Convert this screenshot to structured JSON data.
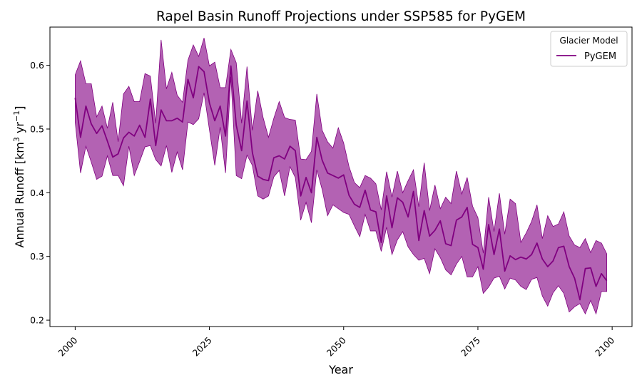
{
  "chart_data": {
    "type": "area",
    "title": "Rapel Basin Runoff Projections under SSP585 for PyGEM",
    "xlabel": "Year",
    "ylabel_main": "Annual Runoff [km",
    "ylabel_sup1": "3",
    "ylabel_mid": " yr",
    "ylabel_sup2": "−1",
    "ylabel_end": "]",
    "xlim": [
      1995.3,
      2103.7
    ],
    "ylim": [
      0.19,
      0.66
    ],
    "xticks": [
      2000,
      2025,
      2050,
      2075,
      2100
    ],
    "yticks": [
      0.2,
      0.3,
      0.4,
      0.5,
      0.6
    ],
    "legend": {
      "title": "Glacier Model",
      "placement": "top-right"
    },
    "series": [
      {
        "name": "PyGEM",
        "color": "#800080",
        "fill_color": "#b362b3",
        "x_start": 2000,
        "x_end": 2099,
        "mean": [
          0.549,
          0.487,
          0.536,
          0.508,
          0.493,
          0.505,
          0.481,
          0.456,
          0.461,
          0.486,
          0.495,
          0.489,
          0.506,
          0.487,
          0.547,
          0.474,
          0.53,
          0.513,
          0.513,
          0.517,
          0.511,
          0.578,
          0.549,
          0.598,
          0.59,
          0.541,
          0.513,
          0.536,
          0.489,
          0.599,
          0.506,
          0.466,
          0.544,
          0.463,
          0.426,
          0.421,
          0.419,
          0.455,
          0.458,
          0.453,
          0.473,
          0.466,
          0.395,
          0.424,
          0.4,
          0.487,
          0.451,
          0.431,
          0.427,
          0.423,
          0.428,
          0.396,
          0.382,
          0.377,
          0.404,
          0.373,
          0.37,
          0.322,
          0.395,
          0.345,
          0.392,
          0.385,
          0.362,
          0.402,
          0.325,
          0.372,
          0.332,
          0.341,
          0.356,
          0.32,
          0.317,
          0.357,
          0.362,
          0.377,
          0.319,
          0.314,
          0.28,
          0.35,
          0.303,
          0.343,
          0.277,
          0.301,
          0.295,
          0.299,
          0.296,
          0.303,
          0.321,
          0.296,
          0.284,
          0.293,
          0.314,
          0.316,
          0.284,
          0.266,
          0.232,
          0.281,
          0.282,
          0.253,
          0.273,
          0.262
        ],
        "upper": [
          0.585,
          0.607,
          0.571,
          0.571,
          0.519,
          0.536,
          0.501,
          0.542,
          0.48,
          0.555,
          0.567,
          0.543,
          0.543,
          0.587,
          0.583,
          0.509,
          0.64,
          0.563,
          0.589,
          0.553,
          0.542,
          0.608,
          0.632,
          0.614,
          0.643,
          0.599,
          0.605,
          0.565,
          0.565,
          0.625,
          0.604,
          0.509,
          0.598,
          0.498,
          0.56,
          0.518,
          0.487,
          0.517,
          0.543,
          0.518,
          0.515,
          0.514,
          0.453,
          0.452,
          0.465,
          0.555,
          0.498,
          0.48,
          0.47,
          0.502,
          0.478,
          0.441,
          0.416,
          0.408,
          0.427,
          0.423,
          0.414,
          0.373,
          0.433,
          0.393,
          0.434,
          0.4,
          0.419,
          0.436,
          0.378,
          0.447,
          0.372,
          0.412,
          0.375,
          0.393,
          0.383,
          0.434,
          0.398,
          0.424,
          0.379,
          0.361,
          0.305,
          0.393,
          0.339,
          0.399,
          0.335,
          0.39,
          0.383,
          0.322,
          0.337,
          0.355,
          0.381,
          0.328,
          0.364,
          0.347,
          0.351,
          0.37,
          0.332,
          0.318,
          0.314,
          0.328,
          0.306,
          0.325,
          0.321,
          0.304
        ],
        "lower": [
          0.511,
          0.431,
          0.473,
          0.448,
          0.421,
          0.426,
          0.458,
          0.427,
          0.427,
          0.411,
          0.473,
          0.427,
          0.449,
          0.472,
          0.474,
          0.452,
          0.442,
          0.474,
          0.432,
          0.464,
          0.436,
          0.511,
          0.507,
          0.516,
          0.557,
          0.499,
          0.443,
          0.503,
          0.431,
          0.582,
          0.427,
          0.422,
          0.459,
          0.443,
          0.395,
          0.39,
          0.395,
          0.425,
          0.435,
          0.395,
          0.441,
          0.424,
          0.357,
          0.385,
          0.353,
          0.436,
          0.405,
          0.364,
          0.381,
          0.375,
          0.369,
          0.366,
          0.348,
          0.331,
          0.366,
          0.34,
          0.34,
          0.308,
          0.346,
          0.303,
          0.326,
          0.339,
          0.315,
          0.303,
          0.294,
          0.297,
          0.273,
          0.312,
          0.298,
          0.279,
          0.271,
          0.288,
          0.3,
          0.268,
          0.268,
          0.284,
          0.242,
          0.252,
          0.266,
          0.269,
          0.249,
          0.266,
          0.263,
          0.253,
          0.248,
          0.264,
          0.267,
          0.238,
          0.222,
          0.243,
          0.254,
          0.242,
          0.213,
          0.221,
          0.226,
          0.21,
          0.231,
          0.21,
          0.245,
          0.245
        ]
      }
    ]
  }
}
